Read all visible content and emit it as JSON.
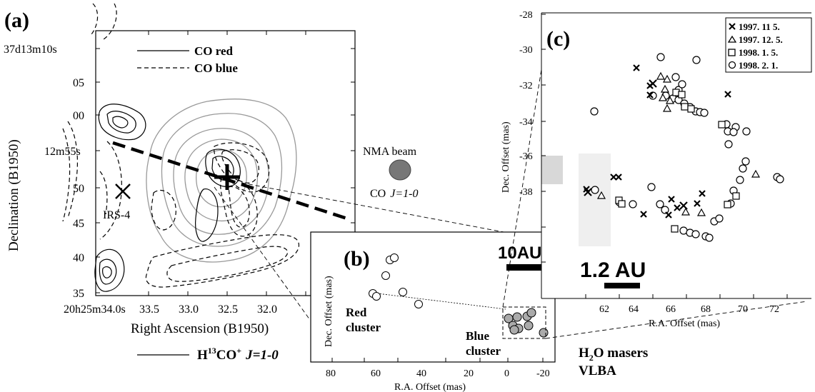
{
  "panel_a": {
    "label": "(a)",
    "legend_red": "CO red",
    "legend_blue": "CO blue",
    "y_title": "Declination (B1950)",
    "x_title": "Right Ascension (B1950)",
    "y_ticks": [
      "37d13m10s",
      "05",
      "00",
      "12m55s",
      "50",
      "45",
      "40",
      "35"
    ],
    "x_ticks": [
      "20h25m34.0s",
      "33.5",
      "33.0",
      "32.5",
      "32.0"
    ],
    "source_label": "IRS-4",
    "beam_title": "NMA beam",
    "beam_line": "CO",
    "beam_transition": "J=1-0",
    "bottom_legend_prefix": "H",
    "bottom_legend_sup": "13",
    "bottom_legend_mid": "CO",
    "bottom_legend_sup2": "+",
    "bottom_legend_suffix": "J=1-0"
  },
  "panel_b": {
    "label": "(b)",
    "scale_label": "10AU",
    "red_label_1": "Red",
    "red_label_2": "cluster",
    "blue_label_1": "Blue",
    "blue_label_2": "cluster",
    "x_title": "R.A. Offset (mas)",
    "y_title": "Dec. Offset (mas)",
    "x_ticks": [
      "80",
      "60",
      "40",
      "20",
      "0",
      "-20"
    ]
  },
  "panel_c": {
    "label": "(c)",
    "x_title": "R.A. Offset (mas)",
    "y_title": "Dec. Offset (mas)",
    "x_ticks": [
      "62",
      "64",
      "66",
      "68",
      "70",
      "72"
    ],
    "y_ticks": [
      "-28",
      "-30",
      "-32",
      "-34",
      "-36",
      "-38"
    ],
    "scale_label": "1.2 AU",
    "legend": [
      "1997. 11  5.",
      "1997. 12. 5.",
      "1998.  1.  5.",
      "1998.  2.  1."
    ]
  },
  "maser_label_1": "H",
  "maser_label_sub": "2",
  "maser_label_2": "O masers",
  "maser_label_3": "VLBA"
}
